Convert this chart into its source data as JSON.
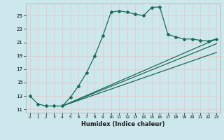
{
  "xlabel": "Humidex (Indice chaleur)",
  "background_color": "#cce8ec",
  "grid_color": "#e8c8c8",
  "line_color": "#1a6b5a",
  "xlim": [
    -0.5,
    23.5
  ],
  "ylim": [
    10.5,
    26.8
  ],
  "xticks": [
    0,
    1,
    2,
    3,
    4,
    5,
    6,
    7,
    8,
    9,
    10,
    11,
    12,
    13,
    14,
    15,
    16,
    17,
    18,
    19,
    20,
    21,
    22,
    23
  ],
  "yticks": [
    11,
    13,
    15,
    17,
    19,
    21,
    23,
    25
  ],
  "series1_x": [
    0,
    1,
    2,
    3,
    4,
    5,
    6,
    7,
    8,
    9,
    10,
    11,
    12,
    13,
    14,
    15,
    16,
    17,
    18,
    19,
    20,
    21,
    22,
    23
  ],
  "series1_y": [
    13.0,
    11.8,
    11.5,
    11.5,
    11.5,
    12.8,
    14.5,
    16.5,
    19.0,
    22.0,
    25.5,
    25.7,
    25.5,
    25.2,
    25.0,
    26.2,
    26.3,
    22.2,
    21.8,
    21.5,
    21.5,
    21.3,
    21.2,
    21.5
  ],
  "series2_x": [
    4,
    23
  ],
  "series2_y": [
    11.5,
    21.5
  ],
  "series3_x": [
    4,
    23
  ],
  "series3_y": [
    11.5,
    20.8
  ],
  "series4_x": [
    4,
    23
  ],
  "series4_y": [
    11.5,
    19.5
  ]
}
